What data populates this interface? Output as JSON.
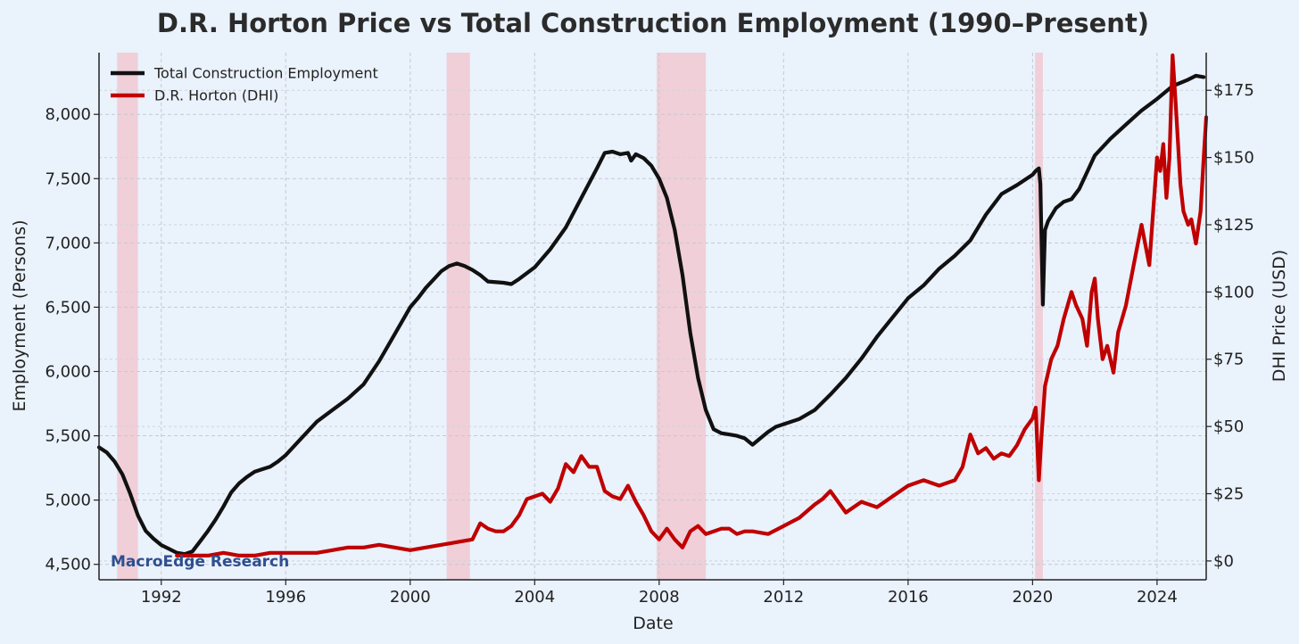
{
  "chart_data": {
    "type": "line",
    "title": "D.R. Horton Price vs Total Construction Employment (1990–Present)",
    "xlabel": "Date",
    "ylabel_left": "Employment (Persons)",
    "ylabel_right": "DHI Price (USD)",
    "xlim": [
      1990.0,
      2025.58
    ],
    "ylim_left": [
      4380,
      8480
    ],
    "ylim_right": [
      -7,
      189
    ],
    "x_ticks": [
      1992,
      1996,
      2000,
      2004,
      2008,
      2012,
      2016,
      2020,
      2024
    ],
    "x_tick_labels": [
      "1992",
      "1996",
      "2000",
      "2004",
      "2008",
      "2012",
      "2016",
      "2020",
      "2024"
    ],
    "y_left_ticks": [
      4500,
      5000,
      5500,
      6000,
      6500,
      7000,
      7500,
      8000
    ],
    "y_left_tick_labels": [
      "4,500",
      "5,000",
      "5,500",
      "6,000",
      "6,500",
      "7,000",
      "7,500",
      "8,000"
    ],
    "y_right_ticks": [
      0,
      25,
      50,
      75,
      100,
      125,
      150,
      175
    ],
    "y_right_tick_labels": [
      "$0",
      "$25",
      "$50",
      "$75",
      "$100",
      "$125",
      "$150",
      "$175"
    ],
    "grid": true,
    "legend_position": "top-left",
    "recessions": [
      [
        1990.58,
        1991.25
      ],
      [
        2001.17,
        2001.92
      ],
      [
        2007.92,
        2009.5
      ],
      [
        2020.08,
        2020.33
      ]
    ],
    "series": [
      {
        "name": "Total Construction Employment",
        "axis": "left",
        "color": "#111111",
        "x": [
          1990.0,
          1990.25,
          1990.5,
          1990.75,
          1991.0,
          1991.25,
          1991.5,
          1991.75,
          1992.0,
          1992.25,
          1992.5,
          1992.75,
          1993.0,
          1993.25,
          1993.5,
          1993.75,
          1994.0,
          1994.25,
          1994.5,
          1994.75,
          1995.0,
          1995.25,
          1995.5,
          1995.75,
          1996.0,
          1996.5,
          1997.0,
          1997.5,
          1998.0,
          1998.5,
          1999.0,
          1999.5,
          2000.0,
          2000.25,
          2000.5,
          2001.0,
          2001.25,
          2001.5,
          2001.75,
          2002.0,
          2002.25,
          2002.5,
          2003.0,
          2003.25,
          2003.5,
          2004.0,
          2004.5,
          2005.0,
          2005.5,
          2006.0,
          2006.25,
          2006.5,
          2006.75,
          2007.0,
          2007.1,
          2007.25,
          2007.5,
          2007.75,
          2008.0,
          2008.25,
          2008.5,
          2008.75,
          2009.0,
          2009.25,
          2009.5,
          2009.75,
          2010.0,
          2010.25,
          2010.5,
          2010.75,
          2011.0,
          2011.25,
          2011.5,
          2011.75,
          2012.0,
          2012.5,
          2013.0,
          2013.5,
          2014.0,
          2014.5,
          2015.0,
          2015.5,
          2016.0,
          2016.5,
          2017.0,
          2017.5,
          2018.0,
          2018.5,
          2019.0,
          2019.5,
          2020.0,
          2020.1,
          2020.2,
          2020.25,
          2020.33,
          2020.4,
          2020.5,
          2020.75,
          2021.0,
          2021.25,
          2021.5,
          2021.75,
          2022.0,
          2022.5,
          2023.0,
          2023.5,
          2024.0,
          2024.5,
          2025.0,
          2025.25,
          2025.5
        ],
        "y": [
          5410,
          5370,
          5300,
          5200,
          5050,
          4880,
          4760,
          4700,
          4650,
          4620,
          4590,
          4580,
          4600,
          4680,
          4760,
          4850,
          4950,
          5060,
          5130,
          5180,
          5220,
          5240,
          5260,
          5300,
          5350,
          5480,
          5610,
          5700,
          5790,
          5900,
          6080,
          6290,
          6500,
          6570,
          6650,
          6780,
          6820,
          6840,
          6820,
          6790,
          6750,
          6700,
          6690,
          6680,
          6720,
          6810,
          6950,
          7120,
          7350,
          7580,
          7700,
          7710,
          7690,
          7700,
          7640,
          7690,
          7660,
          7600,
          7500,
          7350,
          7100,
          6750,
          6300,
          5950,
          5700,
          5550,
          5520,
          5510,
          5500,
          5480,
          5430,
          5480,
          5530,
          5570,
          5590,
          5630,
          5700,
          5820,
          5950,
          6100,
          6270,
          6420,
          6570,
          6670,
          6800,
          6900,
          7020,
          7220,
          7380,
          7450,
          7530,
          7560,
          7580,
          7460,
          6520,
          7100,
          7170,
          7270,
          7320,
          7340,
          7420,
          7550,
          7680,
          7810,
          7920,
          8030,
          8120,
          8220,
          8270,
          8300,
          8290
        ]
      },
      {
        "name": "D.R. Horton (DHI)",
        "axis": "right",
        "color": "#c00000",
        "x": [
          1992.5,
          1993.0,
          1993.5,
          1994.0,
          1994.5,
          1995.0,
          1995.5,
          1996.0,
          1996.5,
          1997.0,
          1997.5,
          1998.0,
          1998.5,
          1999.0,
          1999.5,
          2000.0,
          2000.5,
          2001.0,
          2001.5,
          2002.0,
          2002.25,
          2002.5,
          2002.75,
          2003.0,
          2003.25,
          2003.5,
          2003.75,
          2004.0,
          2004.25,
          2004.5,
          2004.75,
          2005.0,
          2005.25,
          2005.5,
          2005.75,
          2006.0,
          2006.25,
          2006.5,
          2006.75,
          2007.0,
          2007.25,
          2007.5,
          2007.75,
          2008.0,
          2008.25,
          2008.5,
          2008.75,
          2009.0,
          2009.25,
          2009.5,
          2009.75,
          2010.0,
          2010.25,
          2010.5,
          2010.75,
          2011.0,
          2011.5,
          2012.0,
          2012.5,
          2013.0,
          2013.25,
          2013.5,
          2013.75,
          2014.0,
          2014.5,
          2015.0,
          2015.5,
          2016.0,
          2016.5,
          2017.0,
          2017.5,
          2017.75,
          2018.0,
          2018.25,
          2018.5,
          2018.75,
          2019.0,
          2019.25,
          2019.5,
          2019.75,
          2020.0,
          2020.1,
          2020.2,
          2020.28,
          2020.4,
          2020.6,
          2020.8,
          2021.0,
          2021.25,
          2021.4,
          2021.6,
          2021.75,
          2021.9,
          2022.0,
          2022.1,
          2022.25,
          2022.4,
          2022.5,
          2022.6,
          2022.75,
          2023.0,
          2023.25,
          2023.5,
          2023.75,
          2024.0,
          2024.1,
          2024.2,
          2024.3,
          2024.4,
          2024.5,
          2024.6,
          2024.75,
          2024.85,
          2025.0,
          2025.1,
          2025.25,
          2025.4,
          2025.5,
          2025.58
        ],
        "y": [
          2,
          2,
          2,
          3,
          2,
          2,
          3,
          3,
          3,
          3,
          4,
          5,
          5,
          6,
          5,
          4,
          5,
          6,
          7,
          8,
          14,
          12,
          11,
          11,
          13,
          17,
          23,
          24,
          25,
          22,
          27,
          36,
          33,
          39,
          35,
          35,
          26,
          24,
          23,
          28,
          22,
          17,
          11,
          8,
          12,
          8,
          5,
          11,
          13,
          10,
          11,
          12,
          12,
          10,
          11,
          11,
          10,
          13,
          16,
          21,
          23,
          26,
          22,
          18,
          22,
          20,
          24,
          28,
          30,
          28,
          30,
          35,
          47,
          40,
          42,
          38,
          40,
          39,
          43,
          49,
          53,
          57,
          30,
          45,
          65,
          75,
          80,
          90,
          100,
          95,
          90,
          80,
          100,
          105,
          90,
          75,
          80,
          75,
          70,
          85,
          95,
          110,
          125,
          110,
          150,
          145,
          155,
          135,
          150,
          188,
          170,
          140,
          130,
          125,
          127,
          118,
          130,
          150,
          165
        ]
      }
    ],
    "watermark": "MacroEdge Research"
  }
}
